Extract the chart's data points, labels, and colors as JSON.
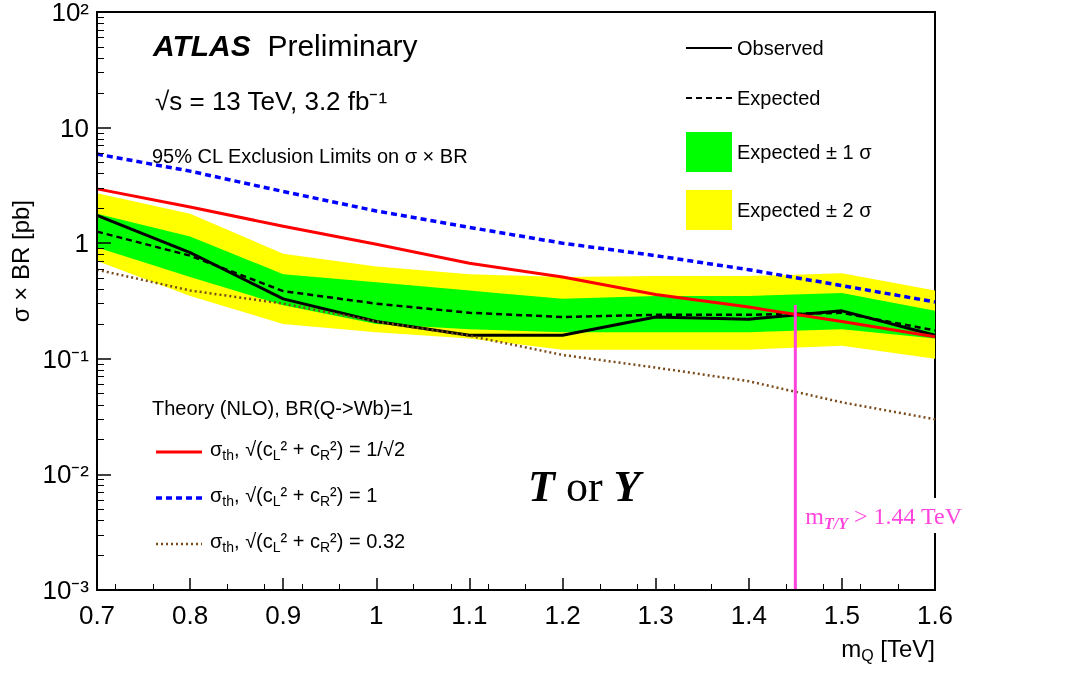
{
  "chart_data": {
    "type": "line",
    "xlabel": "m$_{Q}$ [TeV]",
    "ylabel": "σ × BR [pb]",
    "x": [
      0.7,
      0.8,
      0.9,
      1.0,
      1.1,
      1.2,
      1.3,
      1.4,
      1.5,
      1.6
    ],
    "xlim": [
      0.7,
      1.6
    ],
    "xticks": [
      0.7,
      0.8,
      0.9,
      1,
      1.1,
      1.2,
      1.3,
      1.4,
      1.5,
      1.6
    ],
    "ylim": [
      0.001,
      100
    ],
    "yticks": [
      {
        "value": 0.001,
        "label": "10⁻³"
      },
      {
        "value": 0.01,
        "label": "10⁻²"
      },
      {
        "value": 0.1,
        "label": "10⁻¹"
      },
      1,
      10,
      {
        "value": 100,
        "label": "10²"
      }
    ],
    "log": "y",
    "grid": false,
    "legend": "top right",
    "marker": "none",
    "legend_title": "Theory (NLO), BR(Q->Wb)=1",
    "series": [
      {
        "name": "Expected ± 2 σ",
        "type": "area",
        "color": "#ffff00",
        "values": [
          null,
          null,
          null,
          null,
          null,
          null,
          null,
          null,
          null,
          null
        ],
        "lower": [
          0.7,
          0.35,
          0.2,
          0.17,
          0.15,
          0.12,
          0.12,
          0.12,
          0.13,
          0.1
        ],
        "upper": [
          2.7,
          1.8,
          0.81,
          0.63,
          0.54,
          0.51,
          0.52,
          0.52,
          0.55,
          0.39
        ]
      },
      {
        "name": "Expected ± 1 σ",
        "type": "area",
        "color": "#00ff00",
        "values": [
          null,
          null,
          null,
          null,
          null,
          null,
          null,
          null,
          null,
          null
        ],
        "lower": [
          0.92,
          0.51,
          0.29,
          0.2,
          0.18,
          0.17,
          0.17,
          0.17,
          0.18,
          0.15
        ],
        "upper": [
          1.8,
          1.14,
          0.54,
          0.46,
          0.39,
          0.33,
          0.35,
          0.35,
          0.37,
          0.26
        ]
      },
      {
        "name": "Observed",
        "color": "#000000",
        "line_style": "solid",
        "values": [
          1.74,
          0.83,
          0.33,
          0.21,
          0.16,
          0.16,
          0.23,
          0.22,
          0.26,
          0.16
        ]
      },
      {
        "name": "Expected",
        "color": "#000000",
        "line_style": "dashed",
        "values": [
          1.26,
          0.78,
          0.385,
          0.3,
          0.25,
          0.23,
          0.24,
          0.24,
          0.25,
          0.176
        ]
      },
      {
        "name": "σ$_{th}$, √(c$_{L}$² + c$_{R}$²) = 1/√2",
        "color": "#ff0000",
        "line_style": "solid",
        "values": [
          2.95,
          2.06,
          1.4,
          0.98,
          0.67,
          0.51,
          0.36,
          0.28,
          0.21,
          0.155
        ]
      },
      {
        "name": "σ$_{th}$, √(c$_{L}$² + c$_{R}$²) = 1",
        "color": "#0000ff",
        "line_style": "dashed",
        "values": [
          5.9,
          4.2,
          2.8,
          1.9,
          1.37,
          1.0,
          0.78,
          0.59,
          0.43,
          0.31
        ]
      },
      {
        "name": "σ$_{th}$, √(c$_{L}$² + c$_{R}$²) = 0.32",
        "color": "#7a4a1a",
        "line_style": "dotted",
        "values": [
          0.59,
          0.39,
          0.3,
          0.21,
          0.158,
          0.108,
          0.084,
          0.064,
          0.042,
          0.03
        ]
      }
    ],
    "ref_lines": [
      {
        "axis": "x",
        "value": 1.45,
        "label": "m$_{T/Y}$ > 1.44 TeV",
        "color": "#ff44dd"
      }
    ],
    "annotations": [
      "ATLAS Preliminary",
      "√s = 13 TeV, 3.2 fb⁻¹",
      "95% CL Exclusion Limits on σ × BR",
      "T or Y"
    ]
  }
}
